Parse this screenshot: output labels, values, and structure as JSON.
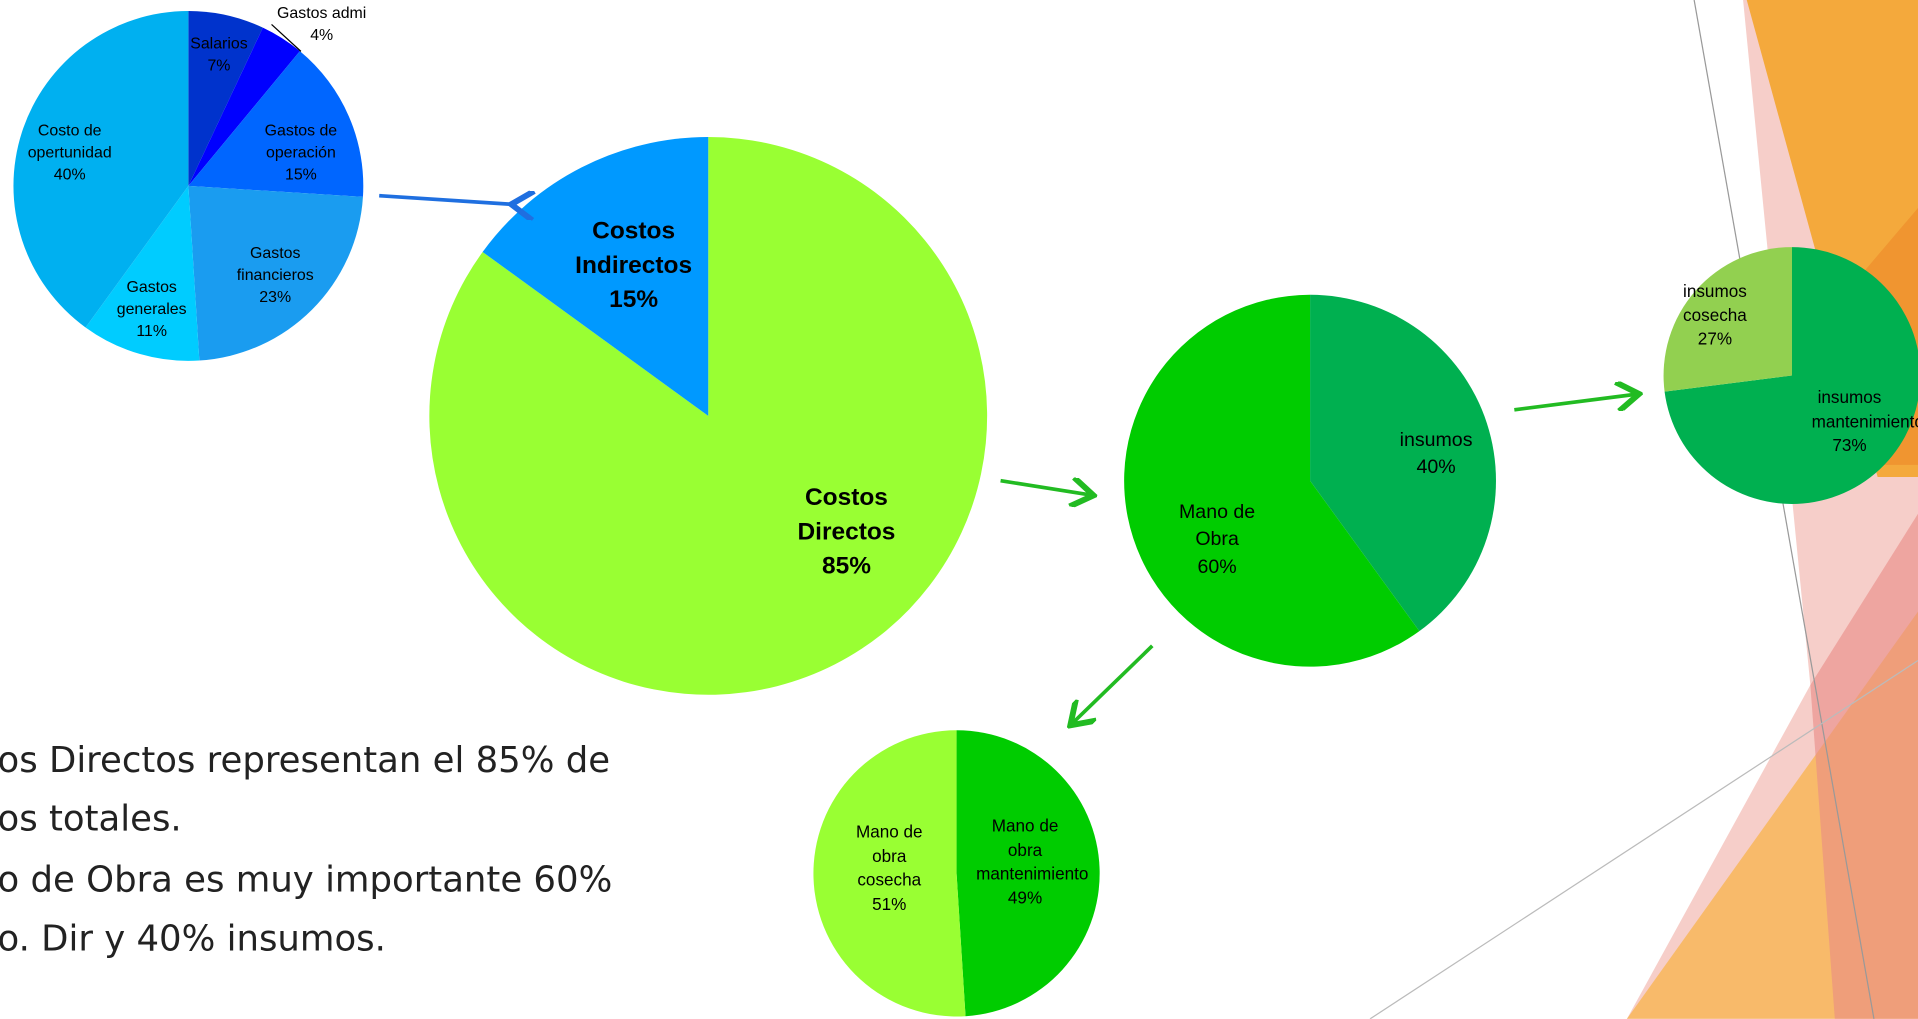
{
  "chart_data": [
    {
      "type": "pie",
      "categories": [
        "Costos Directos",
        "Costos Indirectos"
      ],
      "values": [
        85,
        15
      ],
      "value_labels": [
        "85%",
        "15%"
      ],
      "colors": [
        "#99ff33",
        "#0099ff"
      ]
    },
    {
      "type": "pie",
      "categories": [
        "Salarios",
        "Gastos admi",
        "Gastos de operación",
        "Gastos financieros",
        "Gastos generales",
        "Costo de opertunidad"
      ],
      "values": [
        7,
        4,
        15,
        23,
        11,
        40
      ],
      "value_labels": [
        "7%",
        "4%",
        "15%",
        "23%",
        "11%",
        "40%"
      ],
      "colors": [
        "#0033cc",
        "#0000ff",
        "#0066ff",
        "#1a9cf0",
        "#00ccff",
        "#00b0f0"
      ]
    },
    {
      "type": "pie",
      "categories": [
        "insumos",
        "Mano de Obra"
      ],
      "values": [
        40,
        60
      ],
      "value_labels": [
        "40%",
        "60%"
      ],
      "colors": [
        "#00b050",
        "#00cc00"
      ]
    },
    {
      "type": "pie",
      "categories": [
        "insumos mantenimiento",
        "insumos cosecha"
      ],
      "values": [
        73,
        27
      ],
      "value_labels": [
        "73%",
        "27%"
      ],
      "colors": [
        "#00b050",
        "#92d050"
      ]
    },
    {
      "type": "pie",
      "categories": [
        "Mano de obra mantenimiento",
        "Mano de obra cosecha"
      ],
      "values": [
        49,
        51
      ],
      "value_labels": [
        "49%",
        "51%"
      ],
      "colors": [
        "#00cc00",
        "#99ff33"
      ]
    }
  ],
  "slide_text": {
    "bullets": [
      "os Directos representan el 85% de",
      "os totales.",
      "o de Obra es muy importante 60%",
      "o. Dir y 40% insumos."
    ]
  }
}
